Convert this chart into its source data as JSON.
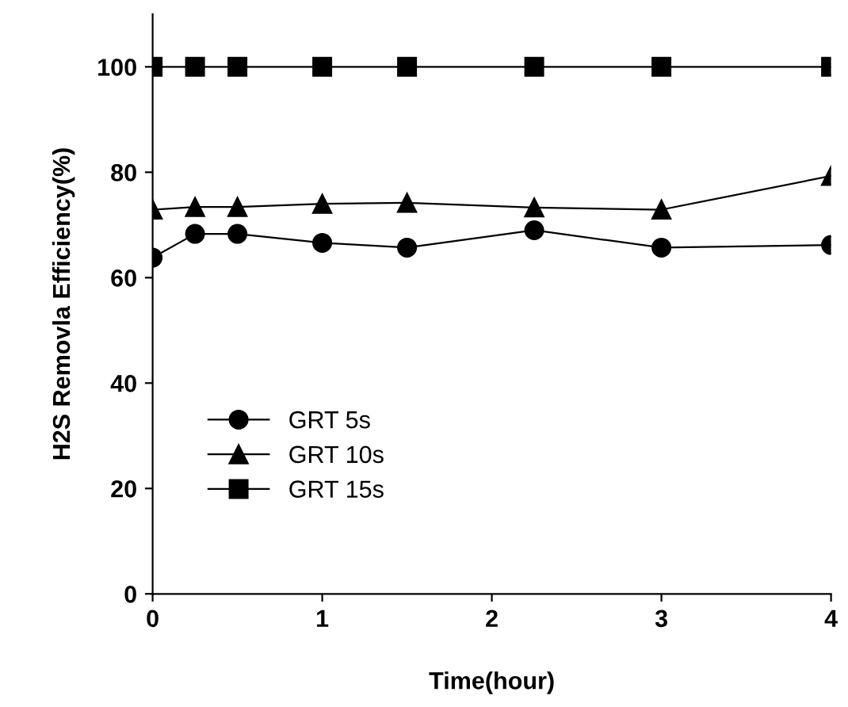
{
  "chart_data": {
    "type": "line",
    "xlabel": "Time(hour)",
    "ylabel": "H2S Removla Efficiency(%)",
    "x": [
      0,
      0.25,
      0.5,
      1,
      1.5,
      2.25,
      3,
      4
    ],
    "series": [
      {
        "name": "GRT 5s",
        "color": "#000000",
        "marker": "circle",
        "values": [
          63.8,
          68.3,
          68.3,
          66.6,
          65.7,
          69.0,
          65.7,
          66.2
        ]
      },
      {
        "name": "GRT 10s",
        "color": "#000000",
        "marker": "triangle",
        "values": [
          72.9,
          73.4,
          73.4,
          74.0,
          74.2,
          73.3,
          72.9,
          79.3
        ]
      },
      {
        "name": "GRT 15s",
        "color": "#000000",
        "marker": "square",
        "values": [
          100,
          100,
          100,
          100,
          100,
          100,
          100,
          100
        ]
      }
    ],
    "xlim": [
      0,
      4
    ],
    "xticks": [
      0,
      1,
      2,
      3,
      4
    ],
    "ylim": [
      0,
      110
    ],
    "yticks": [
      0,
      20,
      40,
      60,
      80,
      100
    ],
    "grid": false,
    "legend": "bottom left",
    "line_style": "solid"
  }
}
